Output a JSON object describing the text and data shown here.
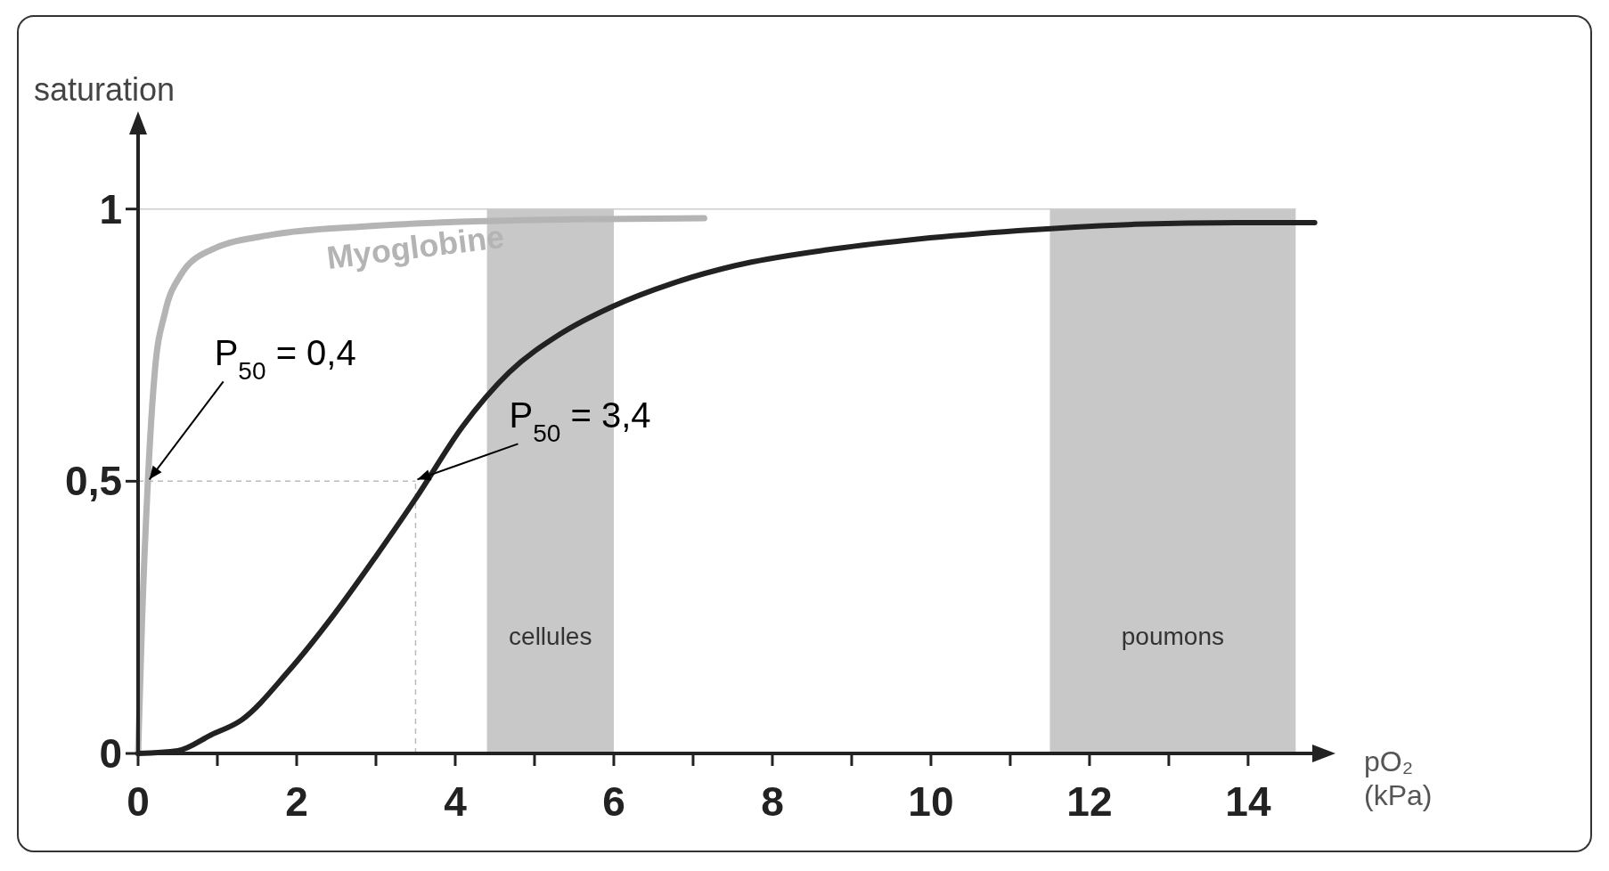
{
  "chart_data": {
    "type": "line",
    "ylabel": "saturation",
    "xlabel": "pO₂ (kPa)",
    "xlim": [
      0,
      14.9
    ],
    "ylim": [
      0,
      1.15
    ],
    "xticks": [
      0,
      {
        "value": 1,
        "label": null
      },
      2,
      {
        "value": 3,
        "label": null
      },
      4,
      {
        "value": 5,
        "label": null
      },
      6,
      {
        "value": 7,
        "label": null
      },
      8,
      {
        "value": 9,
        "label": null
      },
      10,
      {
        "value": 11,
        "label": null
      },
      12,
      {
        "value": 13,
        "label": null
      },
      14
    ],
    "yticks": [
      0,
      {
        "value": 0.5,
        "label": "0,5"
      },
      1
    ],
    "grid": false,
    "marker": "none",
    "line_style": "solid",
    "series": [
      {
        "name": "Myoglobine",
        "color": "#b4b4b4",
        "x": [
          0,
          0.05,
          0.12,
          0.21,
          0.34,
          0.53,
          0.92,
          1.7,
          2.86,
          4.16,
          5.45,
          7.14
        ],
        "values": [
          0,
          0.245,
          0.49,
          0.7,
          0.81,
          0.877,
          0.925,
          0.953,
          0.968,
          0.977,
          0.981,
          0.983
        ]
      },
      {
        "color": "#222222",
        "x": [
          0,
          0.5,
          0.92,
          1.31,
          1.89,
          2.47,
          2.99,
          3.51,
          4.09,
          4.68,
          5.32,
          5.97,
          6.75,
          7.53,
          8.69,
          9.99,
          11.28,
          12.58,
          13.87,
          14.84
        ],
        "values": [
          0,
          0.005,
          0.034,
          0.062,
          0.15,
          0.255,
          0.36,
          0.47,
          0.6,
          0.7,
          0.77,
          0.82,
          0.864,
          0.896,
          0.925,
          0.947,
          0.962,
          0.972,
          0.975,
          0.975
        ]
      }
    ],
    "bands": [
      {
        "axis": "x",
        "from": 4.4,
        "to": 6.0,
        "label": "cellules",
        "color": "#c8c8c8"
      },
      {
        "axis": "x",
        "from": 11.5,
        "to": 14.6,
        "label": "poumons",
        "color": "#c8c8c8"
      }
    ],
    "ref_lines": [
      {
        "axis": "y",
        "value": 1,
        "color": "#cccccc",
        "line_style": "solid"
      },
      {
        "axis": "y",
        "value": 0.5,
        "color": "#bbbbbb",
        "line_style": "dashed"
      },
      {
        "axis": "x",
        "value": 3.5,
        "color": "#bbbbbb",
        "line_style": "dashed"
      }
    ],
    "annotations": [
      {
        "text": "P$_{50}$ = 0,4",
        "x": 0.12,
        "y": 0.5
      },
      {
        "text": "P$_{50}$ = 3,4",
        "x": 3.5,
        "y": 0.5
      }
    ]
  }
}
